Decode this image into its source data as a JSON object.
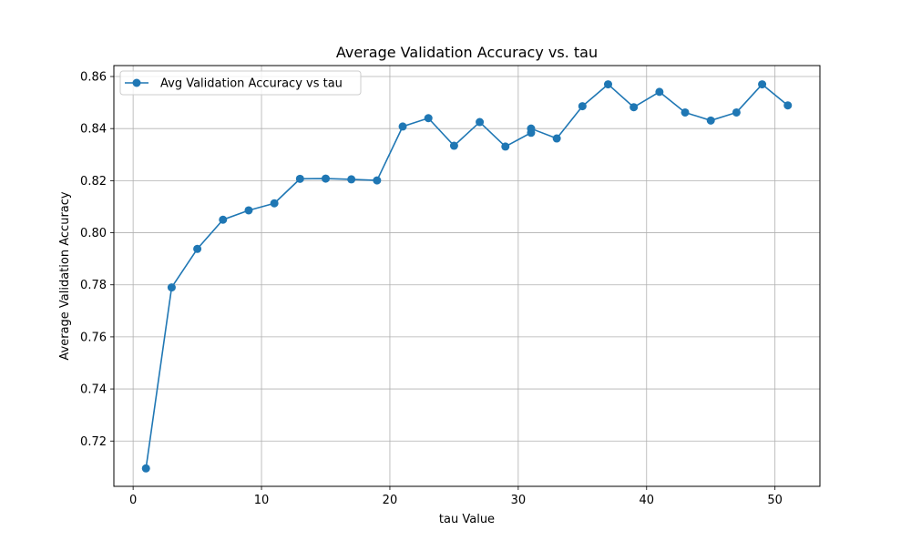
{
  "chart_data": {
    "type": "line",
    "title": "Average Validation Accuracy vs. tau",
    "xlabel": "tau Value",
    "ylabel": "Average Validation Accuracy",
    "xlim": [
      -1.5,
      53.5
    ],
    "ylim": [
      0.7026,
      0.8642
    ],
    "xticks": [
      0,
      10,
      20,
      30,
      40,
      50
    ],
    "yticks": [
      0.72,
      0.74,
      0.76,
      0.78,
      0.8,
      0.82,
      0.84,
      0.86
    ],
    "xtick_labels": [
      "0",
      "10",
      "20",
      "30",
      "40",
      "50"
    ],
    "ytick_labels": [
      "0.72",
      "0.74",
      "0.76",
      "0.78",
      "0.80",
      "0.82",
      "0.84",
      "0.86"
    ],
    "grid": true,
    "legend_position": "upper-left",
    "series": [
      {
        "name": "Avg Validation Accuracy vs tau",
        "color": "#1f77b4",
        "marker": "circle",
        "x": [
          1,
          3,
          5,
          7,
          9,
          11,
          13,
          15,
          17,
          19,
          21,
          23,
          25,
          27,
          29,
          31,
          31,
          33,
          35,
          37,
          39,
          41,
          43,
          45,
          47,
          49,
          51
        ],
        "y": [
          0.7095,
          0.779,
          0.7938,
          0.805,
          0.8086,
          0.8113,
          0.8207,
          0.8208,
          0.8205,
          0.8201,
          0.8408,
          0.844,
          0.8334,
          0.8425,
          0.8331,
          0.8384,
          0.84,
          0.8362,
          0.8486,
          0.857,
          0.8482,
          0.8541,
          0.8462,
          0.8431,
          0.8462,
          0.857,
          0.8489
        ]
      }
    ]
  }
}
